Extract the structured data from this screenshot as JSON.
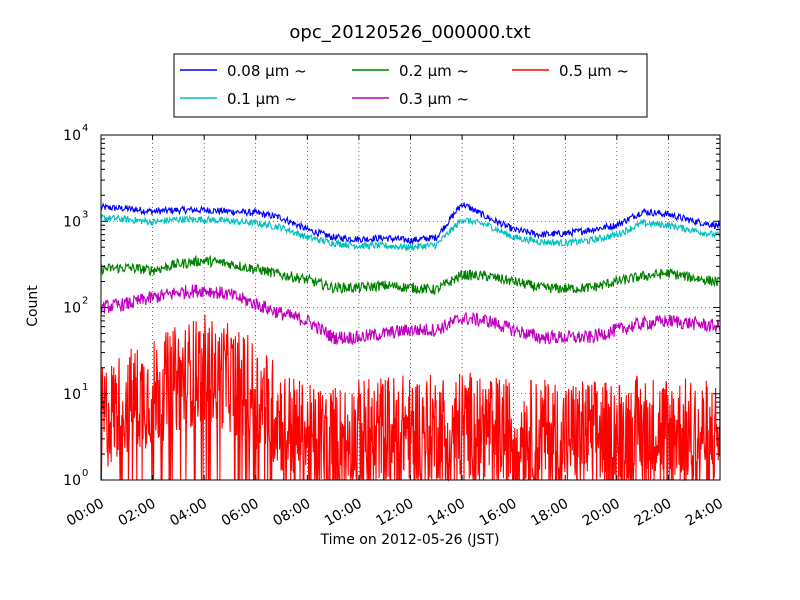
{
  "chart_data": {
    "type": "line",
    "title": "opc_20120526_000000.txt",
    "xlabel": "Time on 2012-05-26 (JST)",
    "ylabel": "Count",
    "y_scale": "log",
    "ylim": [
      1,
      10000
    ],
    "xlim": [
      "00:00",
      "24:00"
    ],
    "x_ticks": [
      "00:00",
      "02:00",
      "04:00",
      "06:00",
      "08:00",
      "10:00",
      "12:00",
      "14:00",
      "16:00",
      "18:00",
      "20:00",
      "22:00",
      "24:00"
    ],
    "y_ticks": [
      {
        "value": 1,
        "base": "10",
        "exp": "0"
      },
      {
        "value": 10,
        "base": "10",
        "exp": "1"
      },
      {
        "value": 100,
        "base": "10",
        "exp": "2"
      },
      {
        "value": 1000,
        "base": "10",
        "exp": "3"
      },
      {
        "value": 10000,
        "base": "10",
        "exp": "4"
      }
    ],
    "grid": true,
    "legend_position": "top-center",
    "x_hours": [
      0,
      1,
      2,
      3,
      4,
      5,
      6,
      7,
      8,
      9,
      10,
      11,
      12,
      13,
      14,
      15,
      16,
      17,
      18,
      19,
      20,
      21,
      22,
      23,
      24
    ],
    "series": [
      {
        "name": "0.08 μm ~",
        "color": "#0000ff",
        "noise": 0.04,
        "values": [
          1450,
          1400,
          1300,
          1350,
          1350,
          1300,
          1250,
          1100,
          800,
          650,
          620,
          640,
          600,
          650,
          1600,
          1100,
          800,
          700,
          720,
          800,
          900,
          1300,
          1200,
          1000,
          880
        ]
      },
      {
        "name": "0.1 μm ~",
        "color": "#00bfbf",
        "noise": 0.04,
        "values": [
          1100,
          1050,
          980,
          1050,
          1050,
          1000,
          950,
          850,
          650,
          560,
          520,
          520,
          500,
          530,
          1050,
          900,
          650,
          580,
          560,
          600,
          700,
          950,
          900,
          780,
          680
        ]
      },
      {
        "name": "0.2 μm ~",
        "color": "#008000",
        "noise": 0.06,
        "values": [
          280,
          290,
          270,
          320,
          350,
          320,
          280,
          240,
          210,
          170,
          170,
          180,
          170,
          160,
          240,
          230,
          200,
          170,
          165,
          170,
          200,
          230,
          250,
          220,
          195
        ]
      },
      {
        "name": "0.3 μm ~",
        "color": "#bf00bf",
        "noise": 0.08,
        "values": [
          100,
          110,
          130,
          150,
          160,
          140,
          110,
          85,
          70,
          45,
          45,
          50,
          55,
          55,
          75,
          70,
          55,
          45,
          45,
          45,
          55,
          65,
          70,
          65,
          60
        ]
      },
      {
        "name": "0.5 μm ~",
        "color": "#ff0000",
        "noise": 0.45,
        "values": [
          5,
          8,
          10,
          15,
          20,
          15,
          10,
          5,
          3,
          3,
          3.5,
          4,
          4,
          4,
          4.5,
          4,
          3.5,
          3.5,
          3.5,
          3.5,
          3.5,
          4,
          4,
          3.5,
          3.5
        ]
      }
    ]
  }
}
